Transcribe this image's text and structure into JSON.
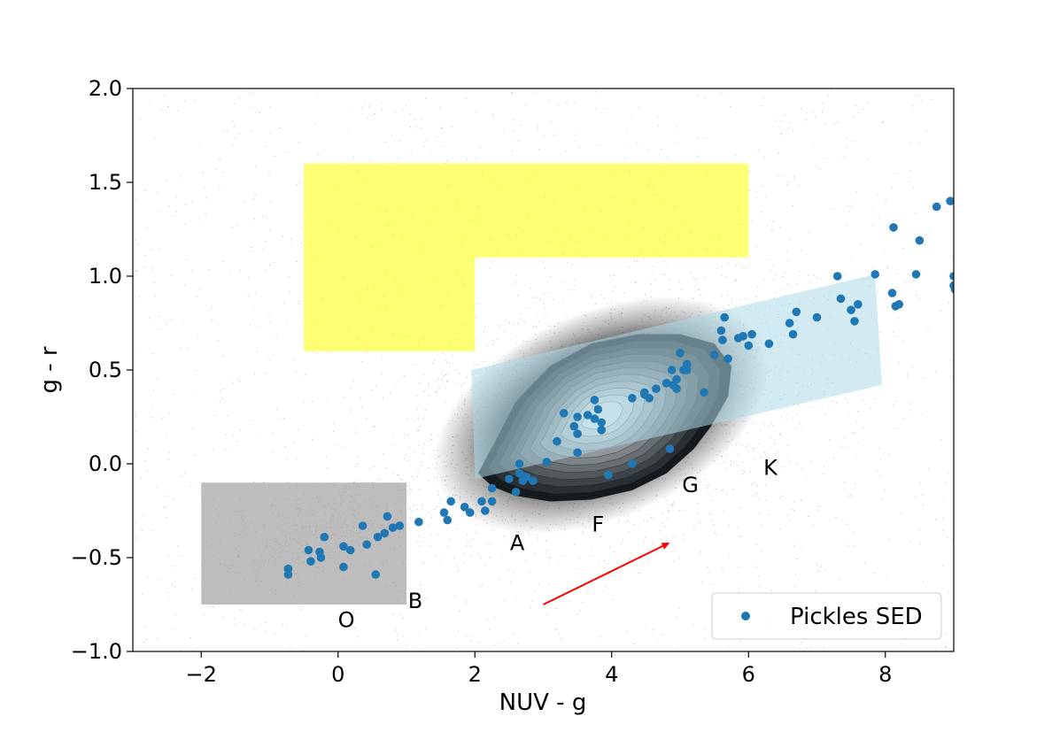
{
  "chart_data": {
    "type": "scatter",
    "xlabel": "NUV - g",
    "ylabel": "g - r",
    "xlim": [
      -3,
      9
    ],
    "ylim": [
      -1.0,
      2.0
    ],
    "xticks": [
      -2,
      0,
      2,
      4,
      6,
      8
    ],
    "yticks": [
      -1.0,
      -0.5,
      0.0,
      0.5,
      1.0,
      1.5,
      2.0
    ],
    "xtick_labels": [
      "−2",
      "0",
      "2",
      "4",
      "6",
      "8"
    ],
    "ytick_labels": [
      "−1.0",
      "−0.5",
      "0.0",
      "0.5",
      "1.0",
      "1.5",
      "2.0"
    ],
    "grid": false,
    "legend": {
      "position": "lower-right",
      "entries": [
        "Pickles SED"
      ]
    },
    "colors": {
      "pickles": "#1f77b4",
      "yellow_region": "#ffff00",
      "grey_region": "#999999",
      "blue_band": "#add8e6",
      "arrow": "#ff0000",
      "background_points": "#000000"
    },
    "regions": {
      "yellow_polygon": [
        [
          -0.5,
          0.6
        ],
        [
          -0.5,
          1.6
        ],
        [
          6.0,
          1.6
        ],
        [
          6.0,
          1.1
        ],
        [
          2.0,
          1.1
        ],
        [
          2.0,
          0.6
        ]
      ],
      "grey_box": [
        [
          -2.0,
          -0.75
        ],
        [
          -2.0,
          -0.1
        ],
        [
          1.0,
          -0.1
        ],
        [
          1.0,
          -0.75
        ]
      ],
      "blue_band": [
        [
          1.95,
          0.5
        ],
        [
          7.85,
          1.01
        ],
        [
          7.95,
          0.42
        ],
        [
          2.0,
          -0.08
        ]
      ]
    },
    "density_contour": {
      "center": [
        3.85,
        0.26
      ],
      "outline": [
        [
          2.05,
          -0.05
        ],
        [
          2.3,
          0.12
        ],
        [
          2.6,
          0.33
        ],
        [
          3.1,
          0.52
        ],
        [
          3.7,
          0.64
        ],
        [
          4.4,
          0.69
        ],
        [
          5.0,
          0.69
        ],
        [
          5.5,
          0.64
        ],
        [
          5.75,
          0.52
        ],
        [
          5.7,
          0.36
        ],
        [
          5.45,
          0.2
        ],
        [
          5.2,
          0.08
        ],
        [
          4.8,
          -0.05
        ],
        [
          4.3,
          -0.14
        ],
        [
          3.7,
          -0.19
        ],
        [
          3.1,
          -0.2
        ],
        [
          2.6,
          -0.17
        ],
        [
          2.25,
          -0.12
        ]
      ]
    },
    "arrow": {
      "from": [
        3.0,
        -0.75
      ],
      "to": [
        4.85,
        -0.42
      ]
    },
    "annotations": [
      {
        "text": "O",
        "x": 0.12,
        "y": -0.87
      },
      {
        "text": "B",
        "x": 1.13,
        "y": -0.77
      },
      {
        "text": "A",
        "x": 2.62,
        "y": -0.46
      },
      {
        "text": "F",
        "x": 3.8,
        "y": -0.36
      },
      {
        "text": "G",
        "x": 5.15,
        "y": -0.15
      },
      {
        "text": "K",
        "x": 6.32,
        "y": -0.06
      }
    ],
    "series": [
      {
        "name": "Pickles SED",
        "points": [
          [
            -0.73,
            -0.56
          ],
          [
            -0.73,
            -0.59
          ],
          [
            -0.43,
            -0.46
          ],
          [
            -0.4,
            -0.52
          ],
          [
            -0.27,
            -0.47
          ],
          [
            -0.25,
            -0.5
          ],
          [
            -0.2,
            -0.39
          ],
          [
            0.08,
            -0.55
          ],
          [
            0.08,
            -0.44
          ],
          [
            0.18,
            -0.46
          ],
          [
            0.36,
            -0.33
          ],
          [
            0.42,
            -0.43
          ],
          [
            0.55,
            -0.59
          ],
          [
            0.58,
            -0.39
          ],
          [
            0.68,
            -0.37
          ],
          [
            0.72,
            -0.28
          ],
          [
            0.8,
            -0.34
          ],
          [
            0.9,
            -0.33
          ],
          [
            1.18,
            -0.31
          ],
          [
            1.55,
            -0.26
          ],
          [
            1.6,
            -0.3
          ],
          [
            1.65,
            -0.2
          ],
          [
            1.85,
            -0.23
          ],
          [
            1.93,
            -0.26
          ],
          [
            2.1,
            -0.2
          ],
          [
            2.15,
            -0.25
          ],
          [
            2.25,
            -0.2
          ],
          [
            2.25,
            -0.13
          ],
          [
            2.5,
            -0.08
          ],
          [
            2.6,
            -0.15
          ],
          [
            2.65,
            -0.05
          ],
          [
            2.65,
            0.0
          ],
          [
            2.7,
            -0.09
          ],
          [
            2.75,
            -0.07
          ],
          [
            2.85,
            -0.09
          ],
          [
            3.05,
            0.01
          ],
          [
            3.2,
            0.12
          ],
          [
            3.3,
            0.27
          ],
          [
            3.45,
            0.2
          ],
          [
            3.5,
            0.06
          ],
          [
            3.5,
            0.16
          ],
          [
            3.5,
            0.25
          ],
          [
            3.65,
            0.26
          ],
          [
            3.75,
            0.24
          ],
          [
            3.75,
            0.34
          ],
          [
            3.8,
            0.29
          ],
          [
            3.85,
            0.22
          ],
          [
            3.85,
            0.18
          ],
          [
            3.95,
            -0.06
          ],
          [
            4.3,
            0.35
          ],
          [
            4.3,
            0.0
          ],
          [
            4.48,
            0.38
          ],
          [
            4.48,
            0.37
          ],
          [
            4.55,
            0.35
          ],
          [
            4.65,
            0.4
          ],
          [
            4.8,
            0.43
          ],
          [
            4.85,
            0.08
          ],
          [
            4.88,
            0.5
          ],
          [
            4.9,
            0.42
          ],
          [
            4.95,
            0.45
          ],
          [
            4.95,
            0.4
          ],
          [
            5.0,
            0.59
          ],
          [
            5.05,
            0.5
          ],
          [
            5.1,
            0.53
          ],
          [
            5.1,
            0.5
          ],
          [
            5.35,
            0.38
          ],
          [
            5.5,
            0.58
          ],
          [
            5.6,
            0.71
          ],
          [
            5.62,
            0.66
          ],
          [
            5.65,
            0.78
          ],
          [
            5.7,
            0.56
          ],
          [
            5.85,
            0.67
          ],
          [
            5.92,
            0.68
          ],
          [
            6.0,
            0.63
          ],
          [
            6.05,
            0.69
          ],
          [
            6.3,
            0.64
          ],
          [
            6.6,
            0.75
          ],
          [
            6.65,
            0.69
          ],
          [
            6.7,
            0.81
          ],
          [
            7.0,
            0.78
          ],
          [
            7.3,
            1.0
          ],
          [
            7.35,
            0.88
          ],
          [
            7.5,
            0.82
          ],
          [
            7.55,
            0.76
          ],
          [
            7.6,
            0.85
          ],
          [
            7.85,
            1.01
          ],
          [
            8.1,
            0.91
          ],
          [
            8.12,
            1.26
          ],
          [
            8.15,
            0.84
          ],
          [
            8.2,
            0.85
          ],
          [
            8.45,
            1.01
          ],
          [
            8.5,
            1.19
          ],
          [
            8.75,
            1.37
          ],
          [
            8.95,
            1.4
          ],
          [
            9.0,
            1.0
          ],
          [
            9.0,
            0.95
          ],
          [
            9.02,
            0.93
          ]
        ]
      }
    ]
  }
}
